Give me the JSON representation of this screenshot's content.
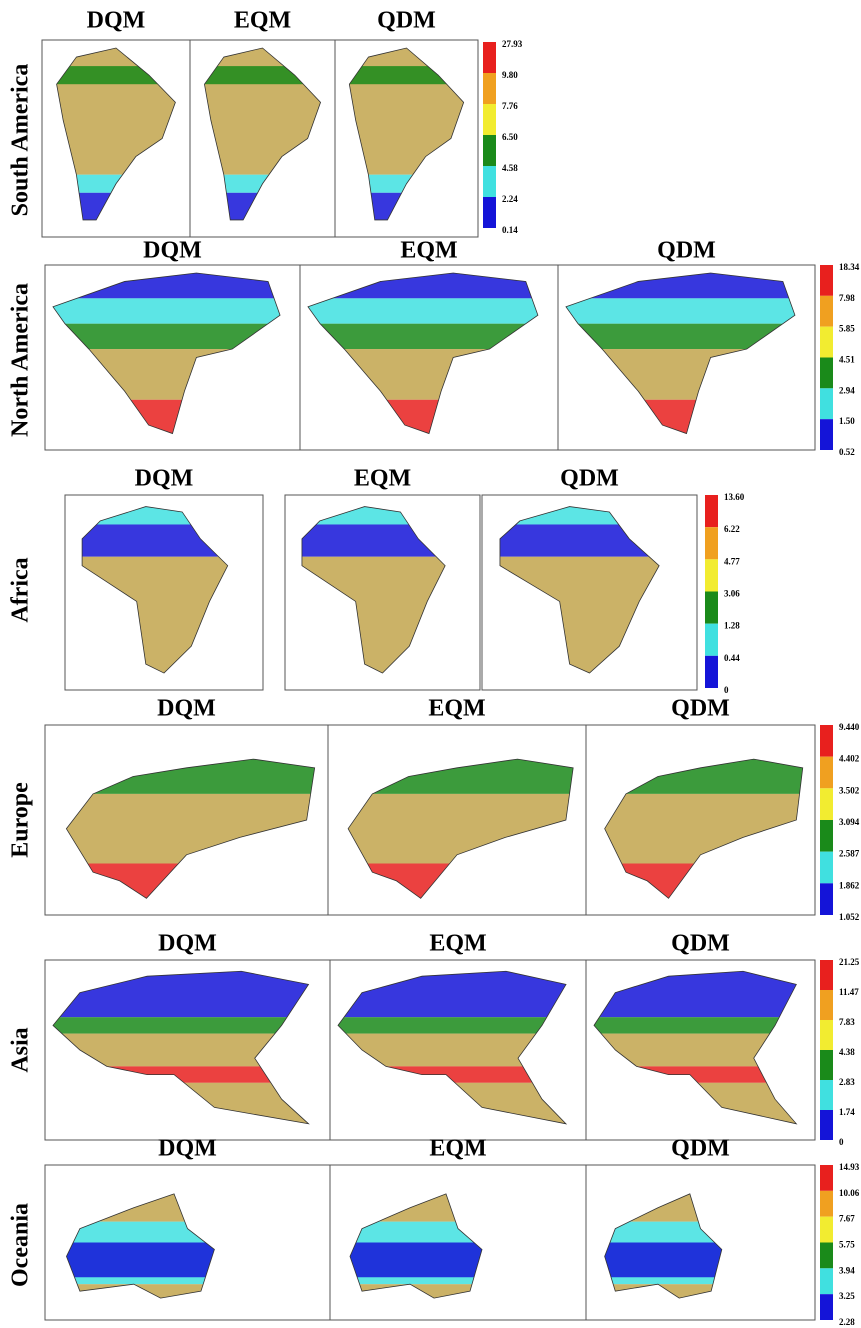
{
  "panels": [
    {
      "region": "South America",
      "methods": [
        "DQM",
        "EQM",
        "QDM"
      ],
      "legend": [
        "27.93",
        "9.80",
        "7.76",
        "6.50",
        "4.58",
        "2.24",
        "0.14"
      ]
    },
    {
      "region": "North America",
      "methods": [
        "DQM",
        "EQM",
        "QDM"
      ],
      "legend": [
        "18.34",
        "7.98",
        "5.85",
        "4.51",
        "2.94",
        "1.50",
        "0.52"
      ]
    },
    {
      "region": "Africa",
      "methods": [
        "DQM",
        "EQM",
        "QDM"
      ],
      "legend": [
        "13.60",
        "6.22",
        "4.77",
        "3.06",
        "1.28",
        "0.44",
        "0"
      ]
    },
    {
      "region": "Europe",
      "methods": [
        "DQM",
        "EQM",
        "QDM"
      ],
      "legend": [
        "9.440",
        "4.402",
        "3.502",
        "3.094",
        "2.587",
        "1.862",
        "1.052"
      ]
    },
    {
      "region": "Asia",
      "methods": [
        "DQM",
        "EQM",
        "QDM"
      ],
      "legend": [
        "21.25",
        "11.47",
        "7.83",
        "4.38",
        "2.83",
        "1.74",
        "0"
      ]
    },
    {
      "region": "Oceania",
      "methods": [
        "DQM",
        "EQM",
        "QDM"
      ],
      "legend": [
        "14.93",
        "10.06",
        "7.67",
        "5.75",
        "3.94",
        "3.25",
        "2.28"
      ]
    }
  ]
}
